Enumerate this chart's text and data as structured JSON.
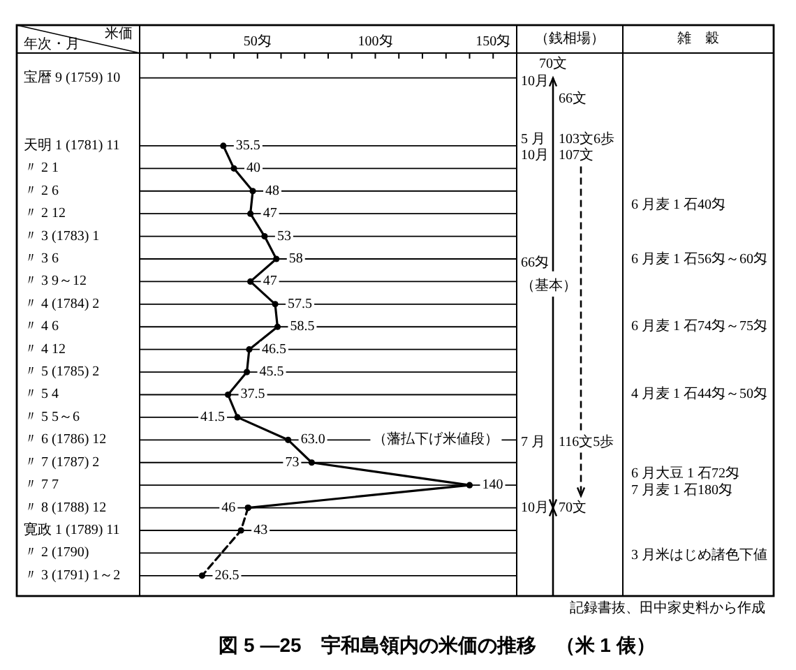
{
  "chart_data": [
    {
      "type": "line",
      "orientation": "horizontal",
      "title": "図 5 —25　宇和島領内の米価の推移　（米 1 俵）",
      "xlabel": "米価",
      "ylabel": "年次・月",
      "categories": [
        "宝暦 9 (1759) 10",
        null,
        null,
        "天明 1 (1781) 11",
        "〃 2 1",
        "〃 2 6",
        "〃 2 12",
        "〃 3 (1783) 1",
        "〃 3 6",
        "〃 3 9～12",
        "〃 4 (1784) 2",
        "〃 4 6",
        "〃 4 12",
        "〃 5 (1785) 2",
        "〃 5 4",
        "〃 5 5～6",
        "〃 6 (1786) 12",
        "〃 7 (1787) 2",
        "〃 7 7",
        "〃 8 (1788) 12",
        "寛政 1 (1789) 11",
        "〃 2 (1790)",
        "〃 3 (1791) 1～2"
      ],
      "xlim": [
        0,
        160
      ],
      "xticks": [
        {
          "value": 10,
          "label": null
        },
        {
          "value": 20,
          "label": null
        },
        {
          "value": 30,
          "label": null
        },
        {
          "value": 40,
          "label": null
        },
        {
          "value": 50,
          "label": "50匁"
        },
        {
          "value": 60,
          "label": null
        },
        {
          "value": 70,
          "label": null
        },
        {
          "value": 80,
          "label": null
        },
        {
          "value": 90,
          "label": null
        },
        {
          "value": 100,
          "label": "100匁"
        },
        {
          "value": 110,
          "label": null
        },
        {
          "value": 120,
          "label": null
        },
        {
          "value": 130,
          "label": null
        },
        {
          "value": 140,
          "label": null
        },
        {
          "value": 150,
          "label": "150匁"
        }
      ],
      "grid": "y",
      "marker": "circle",
      "series": [
        {
          "color": "#000000",
          "line_style": "solid",
          "values": [
            null,
            null,
            null,
            35.5,
            40,
            48,
            47,
            53,
            58,
            47,
            57.5,
            58.5,
            46.5,
            45.5,
            37.5,
            41.5,
            63,
            73,
            140,
            46,
            null,
            null,
            null
          ],
          "value_labels": [
            null,
            null,
            null,
            "35.5",
            "40",
            "48",
            "47",
            "53",
            "58",
            "47",
            "57.5",
            "58.5",
            "46.5",
            "45.5",
            "37.5",
            "41.5",
            "63.0",
            "73",
            "140",
            "46",
            null,
            null,
            null
          ]
        },
        {
          "color": "#000000",
          "line_style": "dashed",
          "values": [
            null,
            null,
            null,
            null,
            null,
            null,
            null,
            null,
            null,
            null,
            null,
            null,
            null,
            null,
            null,
            null,
            null,
            null,
            null,
            46,
            43,
            null,
            26.5
          ],
          "value_labels": [
            null,
            null,
            null,
            null,
            null,
            null,
            null,
            null,
            null,
            null,
            null,
            null,
            null,
            null,
            null,
            null,
            null,
            null,
            null,
            null,
            "43",
            null,
            "26.5"
          ]
        }
      ],
      "annotations": [
        "（藩払下げ米値段）",
        "記録書抜、田中家史料から作成"
      ]
    },
    {
      "type": "other",
      "title": "（銭相場）",
      "annotations": [
        "70文",
        "10月",
        "66文",
        "5 月",
        "103文6歩",
        "10月",
        "107文",
        "66匁",
        "（基本）",
        "7 月",
        "116文5歩",
        "10月",
        "70文"
      ]
    },
    {
      "type": "other",
      "title": "雑　穀",
      "annotations": [
        "6 月麦 1 石40匁",
        "6 月麦 1 石56匁～60匁",
        "6 月麦 1 石74匁～75匁",
        "4 月麦 1 石44匁～50匁",
        "6 月大豆 1 石72匁",
        "7 月麦 1 石180匁",
        "3 月米はじめ諸色下値"
      ]
    }
  ]
}
